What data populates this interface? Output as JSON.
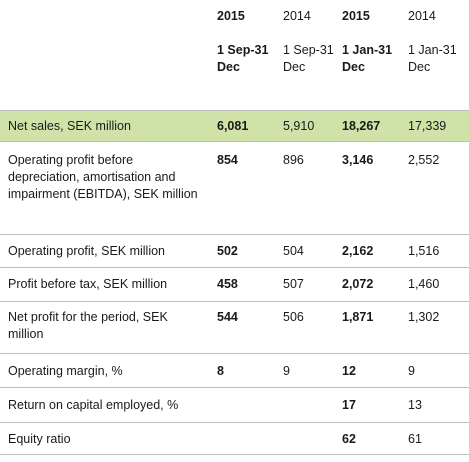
{
  "header": {
    "years": [
      "2015",
      "2014",
      "2015",
      "2014"
    ],
    "periods": [
      "1 Sep-31 Dec",
      "1 Sep-31 Dec",
      "1 Jan-31 Dec",
      "1 Jan-31 Dec"
    ]
  },
  "rows": [
    {
      "label": "Net sales, SEK million",
      "v1": "6,081",
      "v2": "5,910",
      "v3": "18,267",
      "v4": "17,339"
    },
    {
      "label": "Operating profit before depreciation, amortisation and impairment (EBITDA), SEK million",
      "v1": "854",
      "v2": "896",
      "v3": "3,146",
      "v4": "2,552"
    },
    {
      "label": "Operating profit, SEK million",
      "v1": "502",
      "v2": "504",
      "v3": "2,162",
      "v4": "1,516"
    },
    {
      "label": "Profit before tax, SEK million",
      "v1": "458",
      "v2": "507",
      "v3": "2,072",
      "v4": "1,460"
    },
    {
      "label": "Net profit for the period, SEK million",
      "v1": "544",
      "v2": "506",
      "v3": "1,871",
      "v4": "1,302"
    },
    {
      "label": "Operating margin, %",
      "v1": "8",
      "v2": "9",
      "v3": "12",
      "v4": "9"
    },
    {
      "label": "Return on capital employed, %",
      "v1": "",
      "v2": "",
      "v3": "17",
      "v4": "13"
    },
    {
      "label": "Equity ratio",
      "v1": "",
      "v2": "",
      "v3": "62",
      "v4": "61"
    }
  ],
  "colors": {
    "highlight": "#cfe3a8",
    "divider": "#bfbfbf"
  }
}
